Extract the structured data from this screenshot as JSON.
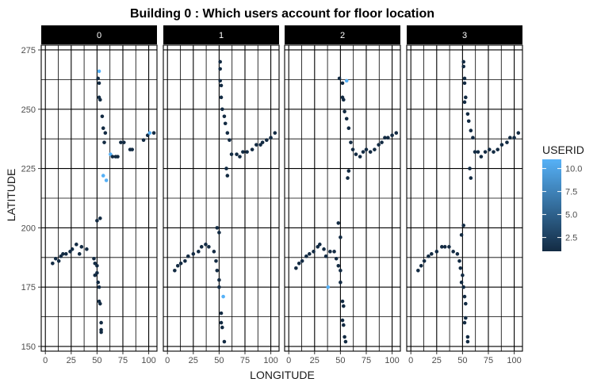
{
  "chart_data": {
    "type": "scatter",
    "title": "Building 0 : Which users account for floor location",
    "xlabel": "LONGITUDE",
    "ylabel": "LATITUDE",
    "xlim": [
      -4,
      108
    ],
    "ylim": [
      148,
      277
    ],
    "x_ticks": [
      0,
      25,
      50,
      75,
      100
    ],
    "y_ticks": [
      150,
      175,
      200,
      225,
      250,
      275
    ],
    "grid": true,
    "legend_position": "right",
    "facet_labels": [
      "0",
      "1",
      "2",
      "3"
    ],
    "legend": {
      "title": "USERID",
      "breaks": [
        "10.0",
        "7.5",
        "5.0",
        "2.5"
      ],
      "break_values": [
        10,
        7.5,
        5,
        2.5
      ],
      "range": [
        1,
        11
      ],
      "low_color": "#132B43",
      "high_color": "#56B1F7"
    },
    "panels": [
      {
        "facet": "0",
        "points": [
          [
            7,
            185,
            1
          ],
          [
            10,
            187,
            1
          ],
          [
            13,
            186,
            1
          ],
          [
            15,
            188,
            1
          ],
          [
            17,
            189,
            1
          ],
          [
            20,
            189,
            1
          ],
          [
            24,
            190,
            1
          ],
          [
            26,
            191,
            1
          ],
          [
            30,
            193,
            1
          ],
          [
            33,
            189,
            1
          ],
          [
            35,
            192,
            1
          ],
          [
            40,
            191,
            1
          ],
          [
            47,
            187,
            1
          ],
          [
            48,
            185,
            1
          ],
          [
            50,
            181,
            1
          ],
          [
            48,
            180,
            1
          ],
          [
            50,
            184,
            1
          ],
          [
            52,
            175,
            1
          ],
          [
            51,
            177,
            1
          ],
          [
            52,
            169,
            1
          ],
          [
            53,
            168,
            1
          ],
          [
            54,
            160,
            1
          ],
          [
            54,
            157,
            1
          ],
          [
            54,
            156,
            1
          ],
          [
            50,
            203,
            1
          ],
          [
            53,
            204,
            1
          ],
          [
            52,
            266,
            11
          ],
          [
            51,
            263,
            1
          ],
          [
            52,
            261,
            1
          ],
          [
            52,
            255,
            1
          ],
          [
            53,
            254,
            1
          ],
          [
            55,
            247,
            1
          ],
          [
            56,
            242,
            1
          ],
          [
            58,
            240,
            1
          ],
          [
            57,
            236,
            1
          ],
          [
            63,
            231,
            11
          ],
          [
            65,
            230,
            1
          ],
          [
            68,
            230,
            1
          ],
          [
            70,
            230,
            1
          ],
          [
            73,
            236,
            1
          ],
          [
            76,
            236,
            1
          ],
          [
            82,
            233,
            1
          ],
          [
            84,
            233,
            1
          ],
          [
            95,
            237,
            1
          ],
          [
            99,
            239,
            1
          ],
          [
            101,
            240,
            11
          ],
          [
            105,
            240,
            1
          ],
          [
            56,
            222,
            11
          ],
          [
            59,
            220,
            11
          ]
        ]
      },
      {
        "facet": "1",
        "points": [
          [
            7,
            182,
            1
          ],
          [
            10,
            184,
            1
          ],
          [
            13,
            185,
            1
          ],
          [
            17,
            186,
            1
          ],
          [
            20,
            188,
            1
          ],
          [
            25,
            189,
            1
          ],
          [
            30,
            190,
            1
          ],
          [
            33,
            192,
            1
          ],
          [
            37,
            193,
            1
          ],
          [
            40,
            192,
            1
          ],
          [
            45,
            190,
            1
          ],
          [
            47,
            186,
            1
          ],
          [
            48,
            182,
            1
          ],
          [
            50,
            178,
            1
          ],
          [
            50,
            175,
            1
          ],
          [
            52,
            164,
            1
          ],
          [
            52,
            160,
            1
          ],
          [
            53,
            158,
            1
          ],
          [
            55,
            152,
            1
          ],
          [
            51,
            270,
            1
          ],
          [
            51,
            267,
            1
          ],
          [
            51,
            262,
            1
          ],
          [
            52,
            260,
            1
          ],
          [
            52,
            255,
            1
          ],
          [
            53,
            250,
            1
          ],
          [
            55,
            247,
            1
          ],
          [
            56,
            244,
            1
          ],
          [
            58,
            240,
            1
          ],
          [
            60,
            237,
            1
          ],
          [
            62,
            231,
            1
          ],
          [
            67,
            231,
            1
          ],
          [
            70,
            230,
            1
          ],
          [
            73,
            232,
            1
          ],
          [
            77,
            232,
            1
          ],
          [
            82,
            233,
            1
          ],
          [
            86,
            235,
            1
          ],
          [
            90,
            235,
            1
          ],
          [
            92,
            236,
            1
          ],
          [
            96,
            237,
            1
          ],
          [
            100,
            238,
            1
          ],
          [
            104,
            240,
            1
          ],
          [
            57,
            225,
            1
          ],
          [
            58,
            222,
            1
          ],
          [
            48,
            200,
            1
          ],
          [
            50,
            198,
            1
          ],
          [
            54,
            171,
            11
          ]
        ]
      },
      {
        "facet": "2",
        "points": [
          [
            7,
            183,
            1
          ],
          [
            10,
            185,
            1
          ],
          [
            13,
            186,
            1
          ],
          [
            17,
            188,
            1
          ],
          [
            20,
            189,
            1
          ],
          [
            24,
            190,
            1
          ],
          [
            28,
            192,
            1
          ],
          [
            30,
            193,
            1
          ],
          [
            34,
            191,
            1
          ],
          [
            36,
            188,
            1
          ],
          [
            40,
            190,
            1
          ],
          [
            44,
            190,
            1
          ],
          [
            46,
            187,
            1
          ],
          [
            48,
            184,
            1
          ],
          [
            50,
            182,
            1
          ],
          [
            38,
            175,
            11
          ],
          [
            50,
            177,
            1
          ],
          [
            52,
            169,
            1
          ],
          [
            53,
            167,
            1
          ],
          [
            52,
            161,
            1
          ],
          [
            53,
            159,
            1
          ],
          [
            54,
            154,
            1
          ],
          [
            55,
            152,
            1
          ],
          [
            48,
            202,
            1
          ],
          [
            50,
            196,
            1
          ],
          [
            49,
            263,
            1
          ],
          [
            52,
            261,
            1
          ],
          [
            56,
            262,
            11
          ],
          [
            52,
            255,
            1
          ],
          [
            53,
            254,
            1
          ],
          [
            54,
            249,
            1
          ],
          [
            56,
            246,
            1
          ],
          [
            58,
            242,
            1
          ],
          [
            60,
            236,
            1
          ],
          [
            62,
            233,
            1
          ],
          [
            65,
            231,
            1
          ],
          [
            69,
            230,
            1
          ],
          [
            72,
            232,
            1
          ],
          [
            75,
            233,
            1
          ],
          [
            79,
            232,
            1
          ],
          [
            83,
            233,
            1
          ],
          [
            87,
            235,
            1
          ],
          [
            90,
            236,
            1
          ],
          [
            93,
            238,
            1
          ],
          [
            96,
            238,
            1
          ],
          [
            100,
            239,
            1
          ],
          [
            104,
            240,
            1
          ],
          [
            57,
            221,
            1
          ],
          [
            58,
            224,
            1
          ]
        ]
      },
      {
        "facet": "3",
        "points": [
          [
            7,
            182,
            1
          ],
          [
            10,
            184,
            1
          ],
          [
            13,
            186,
            1
          ],
          [
            17,
            188,
            1
          ],
          [
            20,
            189,
            1
          ],
          [
            25,
            190,
            1
          ],
          [
            30,
            192,
            1
          ],
          [
            33,
            192,
            1
          ],
          [
            37,
            192,
            1
          ],
          [
            41,
            190,
            1
          ],
          [
            45,
            189,
            1
          ],
          [
            47,
            186,
            1
          ],
          [
            48,
            183,
            1
          ],
          [
            50,
            180,
            1
          ],
          [
            49,
            177,
            1
          ],
          [
            51,
            175,
            1
          ],
          [
            52,
            171,
            1
          ],
          [
            53,
            168,
            1
          ],
          [
            53,
            162,
            1
          ],
          [
            52,
            160,
            1
          ],
          [
            55,
            154,
            1
          ],
          [
            55,
            152,
            1
          ],
          [
            49,
            197,
            1
          ],
          [
            51,
            201,
            1
          ],
          [
            51,
            270,
            1
          ],
          [
            51,
            268,
            1
          ],
          [
            52,
            263,
            1
          ],
          [
            52,
            261,
            1
          ],
          [
            53,
            255,
            1
          ],
          [
            52,
            253,
            1
          ],
          [
            55,
            248,
            1
          ],
          [
            56,
            245,
            1
          ],
          [
            58,
            241,
            1
          ],
          [
            60,
            238,
            1
          ],
          [
            62,
            232,
            1
          ],
          [
            65,
            232,
            1
          ],
          [
            68,
            230,
            1
          ],
          [
            72,
            232,
            1
          ],
          [
            76,
            233,
            1
          ],
          [
            80,
            232,
            1
          ],
          [
            84,
            233,
            1
          ],
          [
            88,
            235,
            1
          ],
          [
            93,
            236,
            1
          ],
          [
            96,
            238,
            1
          ],
          [
            100,
            238,
            1
          ],
          [
            104,
            240,
            1
          ],
          [
            57,
            225,
            1
          ],
          [
            58,
            221,
            1
          ]
        ]
      }
    ]
  }
}
